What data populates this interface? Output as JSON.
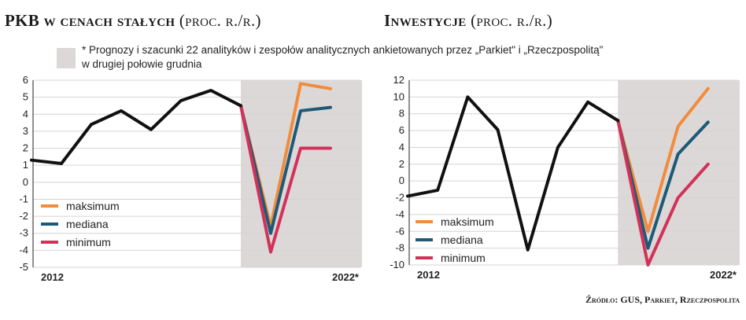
{
  "colors": {
    "actual": "#111111",
    "maksimum": "#f08c3c",
    "mediana": "#1e5a78",
    "minimum": "#d2325a",
    "forecast_band": "#ddd8d8",
    "grid": "#d4d4d4"
  },
  "note": "* Prognozy i szacunki 22 analityków i zespołów analitycznych ankietowanych przez „Parkiet\" i „Rzeczpospolitą\"",
  "note_line2": "w drugiej połowie grudnia",
  "source": "Źródło: GUS, Parkiet, Rzeczpospolita",
  "chart_data": [
    {
      "type": "line",
      "title": "PKB w cenach stałych",
      "title_unit": "(proc. r./r.)",
      "ylim": [
        -5,
        6
      ],
      "yticks": [
        "6",
        "5",
        "4",
        "3",
        "2",
        "1",
        "0",
        "-1",
        "-2",
        "-3",
        "-4",
        "-5"
      ],
      "x_labels": [
        "2012",
        "2022*"
      ],
      "x": [
        0,
        1,
        2,
        3,
        4,
        5,
        6,
        7,
        8,
        9,
        10,
        11
      ],
      "forecast_start": 7,
      "actual": [
        1.3,
        1.1,
        3.4,
        4.2,
        3.1,
        4.8,
        5.4,
        4.5
      ],
      "series": [
        {
          "name": "maksimum",
          "x": [
            7,
            8,
            9,
            10
          ],
          "values": [
            4.5,
            -2.6,
            5.8,
            5.5
          ]
        },
        {
          "name": "mediana",
          "x": [
            7,
            8,
            9,
            10
          ],
          "values": [
            4.5,
            -3.0,
            4.2,
            4.4
          ]
        },
        {
          "name": "minimum",
          "x": [
            7,
            8,
            9,
            10
          ],
          "values": [
            4.5,
            -4.1,
            2.0,
            2.0
          ]
        }
      ],
      "legend": "bottom-left"
    },
    {
      "type": "line",
      "title": "Inwestycje",
      "title_unit": "(proc. r./r.)",
      "ylim": [
        -10,
        12
      ],
      "yticks": [
        "12",
        "10",
        "8",
        "6",
        "4",
        "2",
        "0",
        "-2",
        "-4",
        "-6",
        "-8",
        "-10"
      ],
      "x_labels": [
        "2012",
        "2022*"
      ],
      "x": [
        0,
        1,
        2,
        3,
        4,
        5,
        6,
        7,
        8,
        9,
        10,
        11
      ],
      "forecast_start": 7,
      "actual": [
        -1.8,
        -1.1,
        10.0,
        6.1,
        -8.2,
        4.0,
        9.4,
        7.2
      ],
      "series": [
        {
          "name": "maksimum",
          "x": [
            7,
            8,
            9,
            10
          ],
          "values": [
            7.2,
            -6.0,
            6.5,
            11.0
          ]
        },
        {
          "name": "mediana",
          "x": [
            7,
            8,
            9,
            10
          ],
          "values": [
            7.2,
            -8.0,
            3.2,
            7.0
          ]
        },
        {
          "name": "minimum",
          "x": [
            7,
            8,
            9,
            10
          ],
          "values": [
            7.2,
            -10.0,
            -2.0,
            2.0
          ]
        }
      ],
      "legend": "bottom-left"
    }
  ]
}
